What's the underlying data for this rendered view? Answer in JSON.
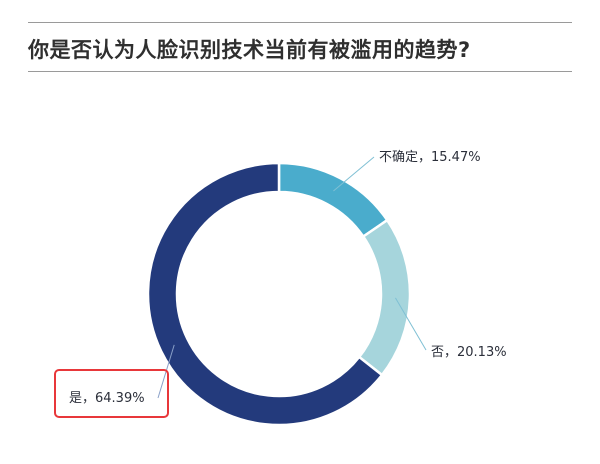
{
  "title": "你是否认为人脸识别技术当前有被滥用的趋势?",
  "chart_data": {
    "type": "pie",
    "categories": [
      "不确定",
      "否",
      "是"
    ],
    "values": [
      15.47,
      20.13,
      64.39
    ],
    "labels": [
      "不确定，15.47%",
      "否，20.13%",
      "是，64.39%"
    ],
    "colors": [
      "#4aaccc",
      "#a6d5dc",
      "#233a7c"
    ],
    "donut": true,
    "title": "你是否认为人脸识别技术当前有被滥用的趋势?"
  },
  "highlight": {
    "target": "是，64.39%",
    "color": "#e8373a"
  }
}
